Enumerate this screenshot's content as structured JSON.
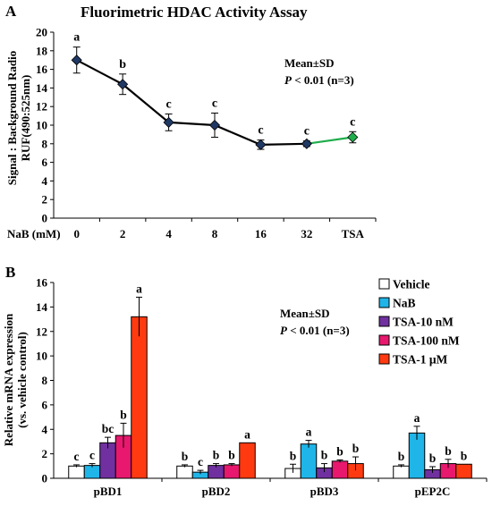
{
  "panelA": {
    "letter": "A",
    "title": "Fluorimetric HDAC Activity Assay",
    "ylabel_line1": "Signal : Background Radio",
    "ylabel_line2": "RUF(490:525nm)",
    "xprefix": "NaB (mM)",
    "annot_line1": "Mean±SD",
    "annot_line2_p": "P",
    "annot_line2_rest": " < 0.01 (n=3)"
  },
  "panelB": {
    "letter": "B",
    "ylabel_line1": "Relative mRNA expression",
    "ylabel_line2": "(vs. vehicle control)",
    "annot_line1": "Mean±SD",
    "annot_line2_p": "P",
    "annot_line2_rest": " < 0.01 (n=3)"
  },
  "chart_data": [
    {
      "type": "line",
      "title": "Fluorimetric HDAC Activity Assay",
      "xlabel": "NaB (mM)",
      "ylabel": "Signal : Background Radio RUF(490:525nm)",
      "ylim": [
        0,
        20
      ],
      "yticks": [
        0,
        2,
        4,
        6,
        8,
        10,
        12,
        14,
        16,
        18,
        20
      ],
      "categories": [
        "0",
        "2",
        "4",
        "8",
        "16",
        "32",
        "TSA"
      ],
      "values": [
        17.0,
        14.4,
        10.3,
        10.0,
        7.9,
        8.0,
        8.7
      ],
      "errors": [
        1.4,
        1.1,
        0.9,
        1.3,
        0.5,
        0.3,
        0.6
      ],
      "letters": [
        "a",
        "b",
        "c",
        "c",
        "c",
        "c",
        "c"
      ],
      "colors": {
        "main": "#000000",
        "marker": "#1f3864",
        "tsa": "#1fad4b"
      },
      "grid": false
    },
    {
      "type": "bar",
      "ylabel": "Relative mRNA expression (vs. vehicle control)",
      "ylim": [
        0,
        16
      ],
      "yticks": [
        0,
        2,
        4,
        6,
        8,
        10,
        12,
        14,
        16
      ],
      "categories": [
        "pBD1",
        "pBD2",
        "pBD3",
        "pEP2C"
      ],
      "legend_position": "top-right",
      "series": [
        {
          "name": "Vehicle",
          "color": "#ffffff",
          "values": [
            1.0,
            1.0,
            0.8,
            1.0
          ],
          "errors": [
            0.1,
            0.1,
            0.35,
            0.1
          ],
          "letters": [
            "c",
            "b",
            "b",
            "b"
          ]
        },
        {
          "name": "NaB",
          "color": "#1fb5e8",
          "values": [
            1.05,
            0.5,
            2.8,
            3.7
          ],
          "errors": [
            0.15,
            0.15,
            0.3,
            0.55
          ],
          "letters": [
            "c",
            "c",
            "a",
            "a"
          ]
        },
        {
          "name": "TSA-10 nM",
          "color": "#7030a0",
          "values": [
            2.9,
            1.05,
            0.85,
            0.7
          ],
          "errors": [
            0.45,
            0.15,
            0.35,
            0.25
          ],
          "letters": [
            "bc",
            "b",
            "b",
            "b"
          ]
        },
        {
          "name": "TSA-100 nM",
          "color": "#e8186e",
          "values": [
            3.5,
            1.1,
            1.4,
            1.2
          ],
          "errors": [
            1.0,
            0.1,
            0.1,
            0.35
          ],
          "letters": [
            "b",
            "b",
            "b",
            "b"
          ]
        },
        {
          "name": "TSA-1 μM",
          "color": "#ff3a10",
          "values": [
            13.2,
            2.9,
            1.2,
            1.15
          ],
          "errors": [
            1.6,
            0.0,
            0.55,
            0.0
          ],
          "letters": [
            "a",
            "a",
            "b",
            "b"
          ]
        }
      ],
      "grid": false
    }
  ]
}
